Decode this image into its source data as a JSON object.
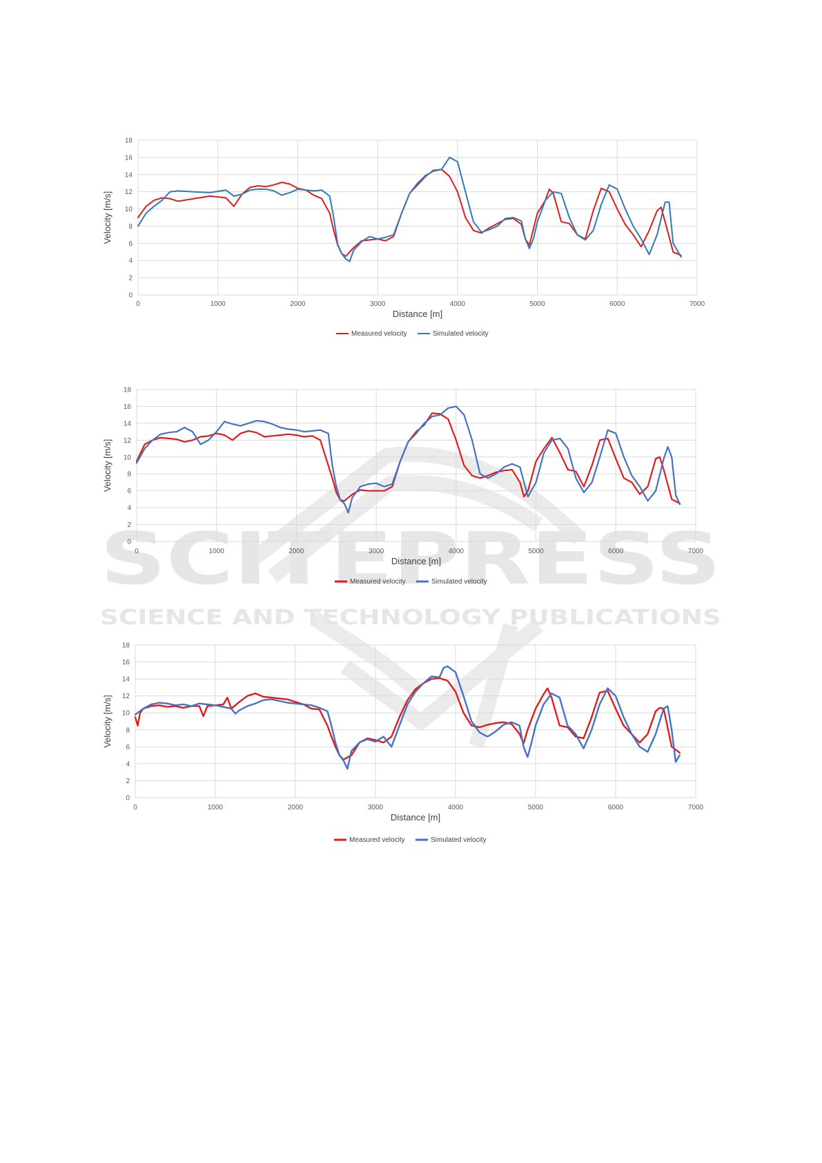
{
  "watermark": {
    "logo_text": "SCITEPRESS",
    "tagline": "SCIENCE AND TECHNOLOGY PUBLICATIONS",
    "color": "#e6e6e6"
  },
  "colors": {
    "measured": "#e21b1b",
    "simulated1": "#2e7ab8",
    "simulated2": "#4472c4",
    "grid": "#d9d9d9"
  },
  "chart_data": [
    {
      "type": "line",
      "title": "",
      "xlabel": "Distance [m]",
      "ylabel": "Velocity [m/s]",
      "xlim": [
        0,
        7000
      ],
      "ylim": [
        0,
        18
      ],
      "xticks": [
        "0",
        "1000",
        "2000",
        "3000",
        "4000",
        "5000",
        "6000",
        "7000"
      ],
      "yticks": [
        "0",
        "2",
        "4",
        "6",
        "8",
        "10",
        "12",
        "14",
        "16",
        "18"
      ],
      "grid": true,
      "legend": "bottom-center",
      "series": [
        {
          "name": "Measured velocity",
          "color": "#e21b1b",
          "x": [
            0,
            100,
            200,
            300,
            400,
            500,
            700,
            900,
            1100,
            1200,
            1300,
            1400,
            1500,
            1600,
            1700,
            1800,
            1900,
            2000,
            2100,
            2200,
            2300,
            2400,
            2450,
            2500,
            2550,
            2600,
            2700,
            2800,
            2900,
            3000,
            3100,
            3200,
            3300,
            3400,
            3500,
            3600,
            3700,
            3800,
            3900,
            4000,
            4100,
            4200,
            4300,
            4400,
            4500,
            4600,
            4700,
            4800,
            4850,
            4900,
            5000,
            5100,
            5150,
            5200,
            5300,
            5400,
            5500,
            5600,
            5700,
            5800,
            5900,
            6000,
            6100,
            6200,
            6300,
            6400,
            6500,
            6550,
            6600,
            6700,
            6800
          ],
          "y": [
            9,
            10.3,
            11,
            11.3,
            11.2,
            10.9,
            11.2,
            11.5,
            11.3,
            10.3,
            11.7,
            12.5,
            12.7,
            12.6,
            12.8,
            13.1,
            12.9,
            12.4,
            12.2,
            11.6,
            11.2,
            9.5,
            7.5,
            5.8,
            4.8,
            4.5,
            5.5,
            6.3,
            6.4,
            6.5,
            6.3,
            6.8,
            9.5,
            11.8,
            12.8,
            13.8,
            14.5,
            14.6,
            13.8,
            12,
            9,
            7.5,
            7.2,
            7.8,
            8.3,
            8.8,
            8.9,
            8.2,
            6.5,
            5.8,
            9.5,
            11,
            12.3,
            11.8,
            8.5,
            8.3,
            7,
            6.5,
            9.8,
            12.4,
            12,
            10,
            8.2,
            7,
            5.6,
            7.5,
            9.8,
            10.2,
            8.5,
            5,
            4.6
          ]
        },
        {
          "name": "Simulated velocity",
          "color": "#2e7ab8",
          "x": [
            0,
            100,
            200,
            300,
            400,
            500,
            700,
            900,
            1100,
            1200,
            1300,
            1400,
            1500,
            1600,
            1700,
            1800,
            1900,
            2000,
            2100,
            2200,
            2300,
            2400,
            2450,
            2500,
            2550,
            2600,
            2650,
            2700,
            2800,
            2900,
            3000,
            3100,
            3200,
            3300,
            3400,
            3500,
            3600,
            3700,
            3800,
            3900,
            4000,
            4100,
            4200,
            4300,
            4400,
            4500,
            4600,
            4700,
            4800,
            4850,
            4900,
            4950,
            5000,
            5100,
            5200,
            5300,
            5400,
            5500,
            5600,
            5700,
            5800,
            5900,
            6000,
            6100,
            6200,
            6300,
            6400,
            6500,
            6600,
            6650,
            6700,
            6800
          ],
          "y": [
            8,
            9.5,
            10.3,
            11,
            12,
            12.1,
            12,
            11.9,
            12.2,
            11.5,
            11.7,
            12.2,
            12.3,
            12.3,
            12.1,
            11.6,
            11.9,
            12.3,
            12.2,
            12.1,
            12.2,
            11.5,
            9,
            5.9,
            4.8,
            4.2,
            3.9,
            5.2,
            6.2,
            6.8,
            6.5,
            6.7,
            7,
            9.5,
            11.8,
            13,
            13.9,
            14.4,
            14.6,
            16,
            15.5,
            12,
            8.5,
            7.3,
            7.6,
            8,
            8.9,
            9,
            8.6,
            6.5,
            5.4,
            6.5,
            8.5,
            11,
            12,
            11.8,
            9,
            7,
            6.4,
            7.5,
            10.5,
            12.8,
            12.3,
            10,
            8,
            6.5,
            4.7,
            7,
            10.8,
            10.8,
            6,
            4.4
          ]
        }
      ]
    },
    {
      "type": "line",
      "title": "",
      "xlabel": "Distance [m]",
      "ylabel": "Velocity [m/s]",
      "xlim": [
        0,
        7000
      ],
      "ylim": [
        0,
        18
      ],
      "xticks": [
        "0",
        "1000",
        "2000",
        "3000",
        "4000",
        "5000",
        "6000",
        "7000"
      ],
      "yticks": [
        "0",
        "2",
        "4",
        "6",
        "8",
        "10",
        "12",
        "14",
        "16",
        "18"
      ],
      "grid": true,
      "legend": "bottom-center",
      "series": [
        {
          "name": "Measured velocity",
          "color": "#e21b1b",
          "x": [
            0,
            100,
            200,
            300,
            400,
            500,
            600,
            700,
            800,
            900,
            1000,
            1100,
            1200,
            1300,
            1400,
            1500,
            1600,
            1700,
            1800,
            1900,
            2000,
            2100,
            2200,
            2300,
            2400,
            2450,
            2500,
            2550,
            2600,
            2700,
            2800,
            2900,
            3000,
            3100,
            3200,
            3300,
            3400,
            3500,
            3600,
            3700,
            3800,
            3900,
            4000,
            4100,
            4200,
            4300,
            4400,
            4500,
            4600,
            4700,
            4800,
            4850,
            4900,
            5000,
            5100,
            5200,
            5300,
            5400,
            5500,
            5600,
            5700,
            5800,
            5900,
            6000,
            6100,
            6200,
            6300,
            6400,
            6500,
            6550,
            6600,
            6700,
            6800
          ],
          "y": [
            9.5,
            11.5,
            12,
            12.3,
            12.2,
            12.1,
            11.8,
            12,
            12.4,
            12.5,
            12.8,
            12.6,
            12,
            12.8,
            13.1,
            12.9,
            12.4,
            12.5,
            12.6,
            12.7,
            12.6,
            12.4,
            12.5,
            12,
            9,
            7.5,
            5.8,
            4.9,
            4.8,
            5.6,
            6.1,
            6,
            6,
            6,
            6.5,
            9.5,
            11.8,
            13,
            13.8,
            15.2,
            15.1,
            14.5,
            12,
            9,
            7.8,
            7.5,
            7.8,
            8.2,
            8.4,
            8.5,
            7,
            5.3,
            6,
            9.5,
            11,
            12.3,
            10.5,
            8.5,
            8.3,
            6.5,
            9,
            12,
            12.2,
            9.8,
            7.5,
            7,
            5.6,
            6.5,
            9.8,
            10,
            8.5,
            5,
            4.5
          ]
        },
        {
          "name": "Simulated velocity",
          "color": "#4472c4",
          "x": [
            0,
            100,
            200,
            300,
            400,
            500,
            600,
            700,
            800,
            900,
            1000,
            1100,
            1200,
            1300,
            1400,
            1500,
            1600,
            1700,
            1800,
            1900,
            2000,
            2100,
            2200,
            2300,
            2400,
            2450,
            2500,
            2550,
            2600,
            2650,
            2700,
            2800,
            2900,
            3000,
            3100,
            3200,
            3300,
            3400,
            3500,
            3600,
            3700,
            3800,
            3900,
            4000,
            4100,
            4200,
            4300,
            4400,
            4500,
            4600,
            4700,
            4800,
            4850,
            4900,
            5000,
            5100,
            5200,
            5300,
            5400,
            5500,
            5600,
            5700,
            5800,
            5900,
            6000,
            6100,
            6200,
            6300,
            6400,
            6500,
            6600,
            6650,
            6700,
            6750,
            6800
          ],
          "y": [
            9.3,
            11,
            12,
            12.7,
            12.9,
            13,
            13.5,
            13,
            11.5,
            12,
            13,
            14.2,
            13.9,
            13.7,
            14,
            14.3,
            14.2,
            13.9,
            13.5,
            13.3,
            13.2,
            13,
            13.1,
            13.2,
            12.8,
            9,
            6.5,
            4.9,
            4.5,
            3.4,
            5.2,
            6.5,
            6.8,
            6.9,
            6.5,
            6.8,
            9.5,
            11.8,
            12.8,
            14,
            14.8,
            15,
            15.8,
            16,
            15,
            12,
            8,
            7.5,
            8,
            8.8,
            9.2,
            8.8,
            7,
            5.3,
            7,
            10.5,
            12,
            12.2,
            11,
            7.5,
            5.8,
            7,
            10,
            13.2,
            12.8,
            10,
            7.8,
            6.5,
            4.8,
            6,
            9.8,
            11.2,
            10,
            5.5,
            4.4
          ]
        }
      ]
    },
    {
      "type": "line",
      "title": "",
      "xlabel": "Distance [m]",
      "ylabel": "Velocity [m/s]",
      "xlim": [
        0,
        7000
      ],
      "ylim": [
        0,
        18
      ],
      "xticks": [
        "0",
        "1000",
        "2000",
        "3000",
        "4000",
        "5000",
        "6000",
        "7000"
      ],
      "yticks": [
        "0",
        "2",
        "4",
        "6",
        "8",
        "10",
        "12",
        "14",
        "16",
        "18"
      ],
      "grid": true,
      "legend": "bottom-center",
      "series": [
        {
          "name": "Measured velocity",
          "color": "#e21b1b",
          "x": [
            0,
            30,
            60,
            100,
            200,
            300,
            400,
            500,
            600,
            700,
            800,
            850,
            900,
            1000,
            1100,
            1150,
            1200,
            1300,
            1400,
            1500,
            1600,
            1700,
            1800,
            1900,
            2000,
            2100,
            2200,
            2300,
            2400,
            2450,
            2500,
            2550,
            2600,
            2700,
            2800,
            2900,
            3000,
            3100,
            3200,
            3300,
            3400,
            3500,
            3600,
            3700,
            3800,
            3900,
            4000,
            4100,
            4200,
            4300,
            4400,
            4500,
            4600,
            4700,
            4800,
            4850,
            4900,
            5000,
            5100,
            5150,
            5200,
            5300,
            5400,
            5500,
            5600,
            5700,
            5800,
            5900,
            6000,
            6100,
            6200,
            6300,
            6400,
            6500,
            6550,
            6600,
            6700,
            6800
          ],
          "y": [
            9.5,
            8.5,
            10,
            10.5,
            10.8,
            10.9,
            10.7,
            10.8,
            10.6,
            10.8,
            10.8,
            9.6,
            10.8,
            10.9,
            11,
            11.8,
            10.5,
            11.3,
            12,
            12.3,
            11.9,
            11.8,
            11.7,
            11.6,
            11.3,
            11,
            10.5,
            10.4,
            8.5,
            7.2,
            6,
            5,
            4.5,
            5,
            6.5,
            7,
            6.8,
            6.5,
            7.2,
            9.5,
            11.5,
            12.8,
            13.5,
            14,
            14.1,
            13.8,
            12.5,
            10,
            8.5,
            8.3,
            8.6,
            8.8,
            8.9,
            8.7,
            7.5,
            6.4,
            8,
            10.5,
            12.2,
            12.9,
            11.8,
            8.5,
            8.3,
            7.2,
            7,
            9.5,
            12.4,
            12.6,
            10.5,
            8.5,
            7.5,
            6.5,
            7.5,
            10.2,
            10.6,
            10.5,
            6,
            5.3
          ]
        },
        {
          "name": "Simulated velocity",
          "color": "#4472c4",
          "x": [
            0,
            100,
            200,
            300,
            400,
            500,
            600,
            700,
            800,
            900,
            1000,
            1100,
            1200,
            1250,
            1300,
            1400,
            1500,
            1600,
            1700,
            1800,
            1900,
            2000,
            2100,
            2200,
            2300,
            2400,
            2450,
            2500,
            2550,
            2600,
            2650,
            2700,
            2800,
            2900,
            3000,
            3100,
            3200,
            3300,
            3400,
            3500,
            3600,
            3700,
            3800,
            3850,
            3900,
            4000,
            4100,
            4200,
            4300,
            4400,
            4500,
            4600,
            4700,
            4800,
            4850,
            4900,
            4950,
            5000,
            5100,
            5200,
            5300,
            5400,
            5500,
            5600,
            5700,
            5800,
            5900,
            6000,
            6100,
            6200,
            6300,
            6400,
            6500,
            6600,
            6650,
            6700,
            6750,
            6800
          ],
          "y": [
            9.8,
            10.5,
            11,
            11.2,
            11.1,
            10.9,
            11,
            10.8,
            11.1,
            11,
            10.9,
            10.7,
            10.5,
            9.9,
            10.3,
            10.8,
            11.1,
            11.5,
            11.6,
            11.4,
            11.2,
            11.1,
            11,
            10.9,
            10.6,
            10.2,
            8.5,
            6.5,
            5,
            4.4,
            3.4,
            5.5,
            6.5,
            6.9,
            6.6,
            7.2,
            6,
            8.5,
            11,
            12.5,
            13.5,
            14.3,
            14.2,
            15.3,
            15.5,
            14.8,
            12,
            9,
            7.7,
            7.2,
            7.8,
            8.6,
            8.9,
            8.5,
            6,
            4.8,
            6.5,
            8.5,
            11,
            12.3,
            11.8,
            8.5,
            7.5,
            5.8,
            8,
            11,
            12.9,
            12,
            9.5,
            7.5,
            6,
            5.4,
            7.5,
            10.5,
            10.8,
            8,
            4.2,
            5
          ]
        }
      ]
    }
  ]
}
